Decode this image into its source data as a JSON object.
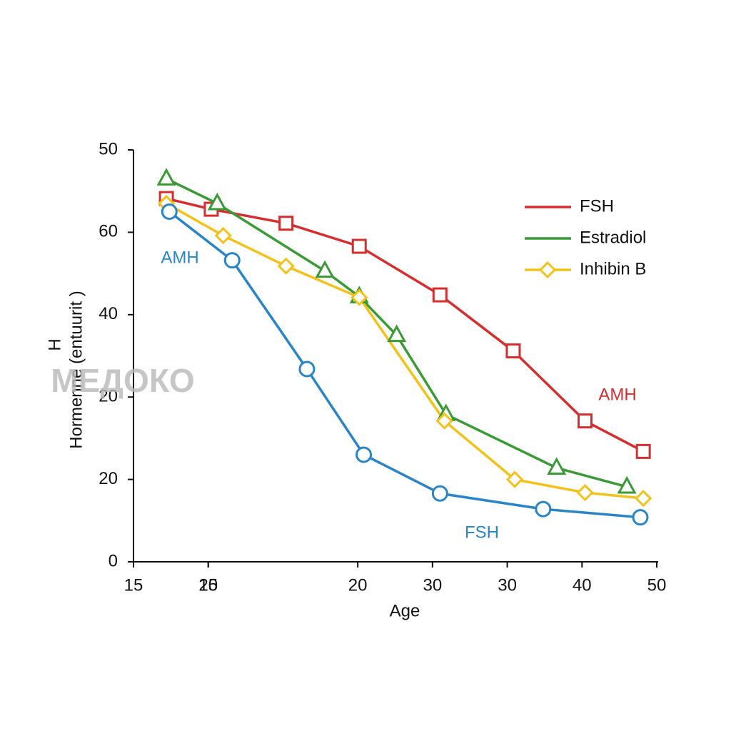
{
  "chart_data": {
    "type": "line",
    "x_label": "Age",
    "y_label": [
      "H",
      "Hormenne (entuurit )"
    ],
    "xlim": [
      15,
      50
    ],
    "xticks": [
      15,
      {
        "value": 20,
        "label": "15"
      },
      20,
      {
        "value": 30,
        "label": "20"
      },
      {
        "value": 35,
        "label": "30"
      },
      {
        "value": 40,
        "label": "30"
      },
      {
        "value": 45,
        "label": "40"
      },
      50
    ],
    "ylim": [
      0,
      50
    ],
    "yticks": [
      0,
      {
        "value": 10,
        "label": "20"
      },
      {
        "value": 20,
        "label": "20"
      },
      {
        "value": 30,
        "label": "40"
      },
      {
        "value": 40,
        "label": "60"
      },
      50
    ],
    "legend": "upper right",
    "series": [
      {
        "name": "FSH",
        "color": "#d62e2e",
        "marker": "square",
        "in_legend": true,
        "x": [
          17.2,
          20.2,
          25.2,
          30.1,
          35.5,
          40.4,
          45.2,
          49.1
        ],
        "values": [
          44.1,
          42.8,
          41.1,
          38.3,
          32.4,
          25.6,
          17.1,
          13.4
        ]
      },
      {
        "name": "Estradiol",
        "color": "#3a9a35",
        "marker": "triangle",
        "in_legend": true,
        "x": [
          17.2,
          20.6,
          27.8,
          30.1,
          32.6,
          35.9,
          43.3,
          48.0
        ],
        "values": [
          46.5,
          43.5,
          35.3,
          32.2,
          27.5,
          17.9,
          11.4,
          9.1
        ]
      },
      {
        "name": "Inhibin B",
        "color": "#f2c21b",
        "marker": "diamond",
        "in_legend": true,
        "x": [
          17.2,
          21.0,
          25.2,
          30.1,
          35.8,
          40.5,
          45.2,
          49.1
        ],
        "values": [
          43.5,
          39.6,
          35.9,
          32.1,
          17.1,
          10.0,
          8.4,
          7.7
        ]
      },
      {
        "name": "AMH",
        "color": "#2a85c8",
        "marker": "circle",
        "in_legend": false,
        "x": [
          17.4,
          21.6,
          26.6,
          30.4,
          35.5,
          42.4,
          48.9
        ],
        "values": [
          42.5,
          36.6,
          23.4,
          13.0,
          8.3,
          6.4,
          5.4
        ]
      }
    ],
    "annotations": [
      {
        "text": "AMH",
        "color": "#2a85c8"
      },
      {
        "text": "AMH",
        "color": "#d62e2e"
      },
      {
        "text": "FSH",
        "color": "#2a85c8"
      },
      {
        "text": "МЕДОКО",
        "color": "#b8b8b8"
      }
    ]
  }
}
